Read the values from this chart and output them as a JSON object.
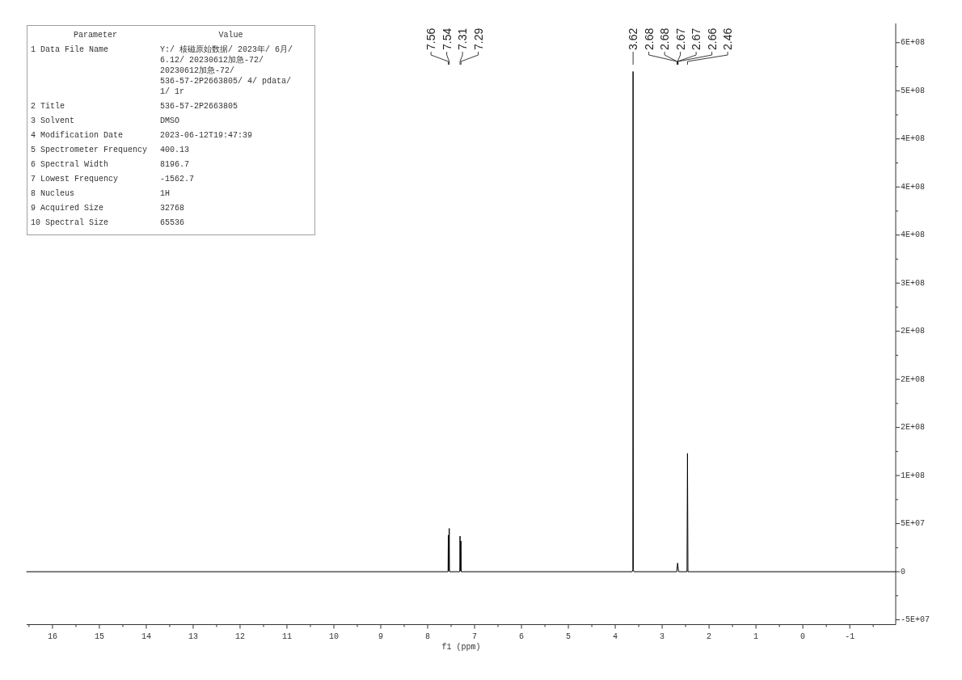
{
  "chart_data": {
    "type": "line",
    "xlabel": "f1 (ppm)",
    "x": [
      16.55,
      7.57,
      7.565,
      7.56,
      7.55,
      7.54,
      7.535,
      7.315,
      7.31,
      7.3,
      7.29,
      7.285,
      3.64,
      3.625,
      3.62,
      3.615,
      3.6,
      2.69,
      2.67,
      2.65,
      2.47,
      2.46,
      2.45,
      -1.98
    ],
    "series": [
      {
        "color": "#000000",
        "values": [
          0,
          0,
          0,
          38000000,
          1000000,
          45000000,
          0,
          0,
          37000000,
          1000000,
          32000000,
          0,
          0,
          2000000,
          520000000,
          2000000,
          0,
          0,
          9000000,
          0,
          0,
          123000000,
          0,
          0
        ]
      }
    ],
    "xlim": [
      16.55,
      -1.98
    ],
    "xticks": [
      {
        "value": 16.5,
        "label": null
      },
      16,
      {
        "value": 15.5,
        "label": null
      },
      15,
      {
        "value": 14.5,
        "label": null
      },
      14,
      {
        "value": 13.5,
        "label": null
      },
      13,
      {
        "value": 12.5,
        "label": null
      },
      12,
      {
        "value": 11.5,
        "label": null
      },
      11,
      {
        "value": 10.5,
        "label": null
      },
      10,
      {
        "value": 9.5,
        "label": null
      },
      9,
      {
        "value": 8.5,
        "label": null
      },
      8,
      {
        "value": 7.5,
        "label": null
      },
      7,
      {
        "value": 6.5,
        "label": null
      },
      6,
      {
        "value": 5.5,
        "label": null
      },
      5,
      {
        "value": 4.5,
        "label": null
      },
      4,
      {
        "value": 3.5,
        "label": null
      },
      3,
      {
        "value": 2.5,
        "label": null
      },
      2,
      {
        "value": 1.5,
        "label": null
      },
      1,
      {
        "value": 0.5,
        "label": null
      },
      0,
      {
        "value": -0.5,
        "label": null
      },
      -1,
      {
        "value": -1.5,
        "label": null
      }
    ],
    "ylim": [
      -55000000,
      570000000
    ],
    "yticks": [
      {
        "value": -50000000,
        "label": "-5E+07"
      },
      {
        "value": -25000000,
        "label": null
      },
      {
        "value": 0,
        "label": "0"
      },
      {
        "value": 25000000,
        "label": null
      },
      {
        "value": 50000000,
        "label": "5E+07"
      },
      {
        "value": 75000000,
        "label": null
      },
      {
        "value": 100000000,
        "label": "1E+08"
      },
      {
        "value": 125000000,
        "label": null
      },
      {
        "value": 150000000,
        "label": "2E+08"
      },
      {
        "value": 175000000,
        "label": null
      },
      {
        "value": 200000000,
        "label": "2E+08"
      },
      {
        "value": 225000000,
        "label": null
      },
      {
        "value": 250000000,
        "label": "2E+08"
      },
      {
        "value": 275000000,
        "label": null
      },
      {
        "value": 300000000,
        "label": "3E+08"
      },
      {
        "value": 325000000,
        "label": null
      },
      {
        "value": 350000000,
        "label": "4E+08"
      },
      {
        "value": 375000000,
        "label": null
      },
      {
        "value": 400000000,
        "label": "4E+08"
      },
      {
        "value": 425000000,
        "label": null
      },
      {
        "value": 450000000,
        "label": "4E+08"
      },
      {
        "value": 475000000,
        "label": null
      },
      {
        "value": 500000000,
        "label": "5E+08"
      },
      {
        "value": 525000000,
        "label": null
      },
      {
        "value": 550000000,
        "label": "6E+08"
      }
    ],
    "annotations": [
      {
        "text": "7.56",
        "x": 7.56
      },
      {
        "text": "7.54",
        "x": 7.54
      },
      {
        "text": "7.31",
        "x": 7.31
      },
      {
        "text": "7.29",
        "x": 7.29
      },
      {
        "text": "3.62",
        "x": 3.62
      },
      {
        "text": "2.68",
        "x": 2.68
      },
      {
        "text": "2.68",
        "x": 2.68
      },
      {
        "text": "2.67",
        "x": 2.67
      },
      {
        "text": "2.67",
        "x": 2.67
      },
      {
        "text": "2.66",
        "x": 2.66
      },
      {
        "text": "2.46",
        "x": 2.46
      },
      "Parameter",
      "Value",
      "1 Data File Name",
      "Y:/ 核磁原始数据/ 2023年/ 6月/ 6.12/ 20230612加急-72/ 20230612加急-72/ 536-57-2P2663805/ 4/ pdata/ 1/ 1r",
      "2 Title",
      "536-57-2P2663805",
      "3 Solvent",
      "DMSO",
      "4 Modification Date",
      "2023-06-12T19:47:39",
      "5 Spectrometer Frequency",
      "400.13",
      "6 Spectral Width",
      "8196.7",
      "7 Lowest Frequency",
      "-1562.7",
      "8 Nucleus",
      "1H",
      "9 Acquired Size",
      "32768",
      "10 Spectral Size",
      "65536"
    ]
  }
}
